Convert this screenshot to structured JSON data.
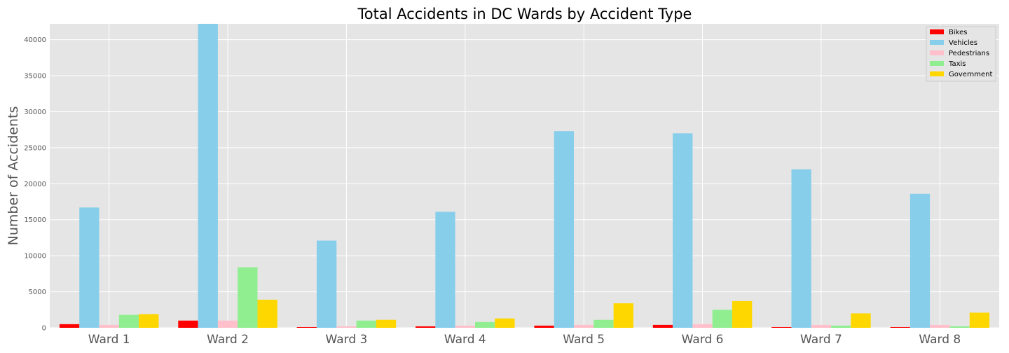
{
  "chart_data": {
    "type": "bar",
    "title": "Total Accidents in DC Wards by Accident Type",
    "xlabel": "",
    "ylabel": "Number of Accidents",
    "categories": [
      "Ward 1",
      "Ward 2",
      "Ward 3",
      "Ward 4",
      "Ward 5",
      "Ward 6",
      "Ward 7",
      "Ward 8"
    ],
    "ylim": [
      0,
      42200
    ],
    "yticks": [
      0,
      5000,
      10000,
      15000,
      20000,
      25000,
      30000,
      35000,
      40000
    ],
    "grid": true,
    "legend_position": "top-right",
    "series": [
      {
        "name": "Bikes",
        "color": "#ff0000",
        "values": [
          500,
          1000,
          100,
          200,
          300,
          400,
          100,
          100
        ]
      },
      {
        "name": "Vehicles",
        "color": "#87ceeb",
        "values": [
          16700,
          42500,
          12100,
          16100,
          27300,
          27000,
          22000,
          18600
        ]
      },
      {
        "name": "Pedestrians",
        "color": "#ffc0cb",
        "values": [
          400,
          1000,
          200,
          300,
          400,
          500,
          400,
          400
        ]
      },
      {
        "name": "Taxis",
        "color": "#90ee90",
        "values": [
          1800,
          8400,
          1000,
          800,
          1100,
          2500,
          300,
          200
        ]
      },
      {
        "name": "Government",
        "color": "#ffd700",
        "values": [
          1900,
          3900,
          1100,
          1300,
          3400,
          3700,
          2000,
          2100
        ]
      }
    ]
  }
}
